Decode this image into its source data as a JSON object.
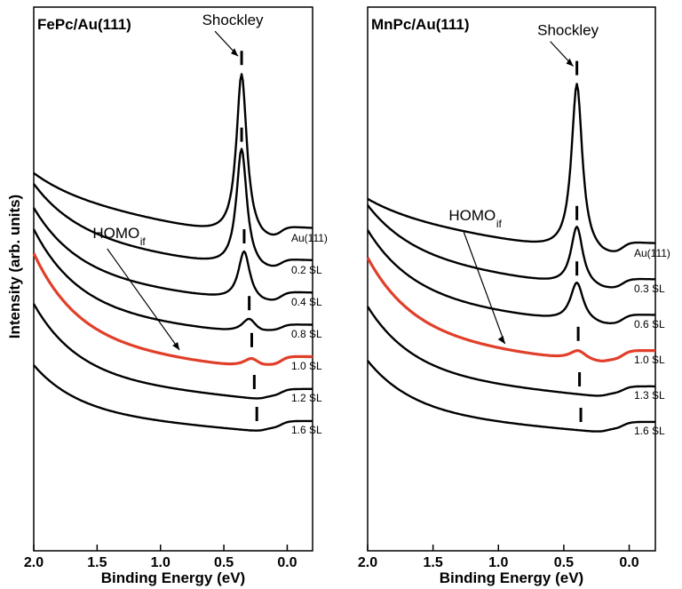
{
  "chart_data": {
    "type": "line",
    "ylabel": "Intensity (arb. units)",
    "xlabel": "Binding Energy (eV)",
    "xlim": [
      2.0,
      -0.2
    ],
    "x_ticks": [
      "2.0",
      "1.5",
      "1.0",
      "0.5",
      "0.0"
    ],
    "x_tick_values": [
      2.0,
      1.5,
      1.0,
      0.5,
      0.0
    ],
    "colors": {
      "trace": "#000000",
      "highlight": "#e0402a",
      "marker": "#000000"
    },
    "panels": [
      {
        "title": "FePc/Au(111)",
        "annotations": [
          {
            "text": "Shockley"
          },
          {
            "text": "HOMO",
            "sub": "if"
          }
        ],
        "series": [
          {
            "label": "Au(111)",
            "start": 0.09,
            "tail": 0.17,
            "end": 0.05,
            "peak_x": 0.36,
            "peak_height": 0.33,
            "peak_width": 0.05,
            "shoulder": 0.0,
            "highlight": false
          },
          {
            "label": "0.2 SL",
            "start": 0.2,
            "tail": 0.13,
            "end": 0.04,
            "peak_x": 0.36,
            "peak_height": 0.24,
            "peak_width": 0.05,
            "shoulder": 0.0,
            "highlight": false
          },
          {
            "label": "0.4 SL",
            "start": 0.26,
            "tail": 0.1,
            "end": 0.04,
            "peak_x": 0.34,
            "peak_height": 0.1,
            "peak_width": 0.055,
            "shoulder": 0.0,
            "highlight": false
          },
          {
            "label": "0.8 SL",
            "start": 0.31,
            "tail": 0.09,
            "end": 0.04,
            "peak_x": 0.3,
            "peak_height": 0.03,
            "peak_width": 0.07,
            "shoulder": 0.01,
            "highlight": false
          },
          {
            "label": "1.0 SL",
            "start": 0.34,
            "tail": 0.1,
            "end": 0.05,
            "peak_x": 0.28,
            "peak_height": 0.02,
            "peak_width": 0.08,
            "shoulder": 0.01,
            "highlight": true
          },
          {
            "label": "1.2 SL",
            "start": 0.28,
            "tail": 0.08,
            "end": 0.04,
            "peak_x": 0.26,
            "peak_height": 0.0,
            "peak_width": 0.08,
            "shoulder": 0.01,
            "highlight": false
          },
          {
            "label": "1.6 SL",
            "start": 0.18,
            "tail": 0.07,
            "end": 0.04,
            "peak_x": 0.24,
            "peak_height": 0.0,
            "peak_width": 0.08,
            "shoulder": 0.01,
            "highlight": false
          }
        ]
      },
      {
        "title": "MnPc/Au(111)",
        "annotations": [
          {
            "text": "Shockley"
          },
          {
            "text": "HOMO",
            "sub": "if"
          }
        ],
        "series": [
          {
            "label": "Au(111)",
            "start": 0.07,
            "tail": 0.15,
            "end": 0.05,
            "peak_x": 0.4,
            "peak_height": 0.34,
            "peak_width": 0.05,
            "shoulder": 0.0,
            "highlight": false
          },
          {
            "label": "0.3 SL",
            "start": 0.2,
            "tail": 0.12,
            "end": 0.04,
            "peak_x": 0.4,
            "peak_height": 0.12,
            "peak_width": 0.055,
            "shoulder": 0.0,
            "highlight": false
          },
          {
            "label": "0.6 SL",
            "start": 0.26,
            "tail": 0.1,
            "end": 0.04,
            "peak_x": 0.4,
            "peak_height": 0.08,
            "peak_width": 0.06,
            "shoulder": 0.0,
            "highlight": false
          },
          {
            "label": "1.0 SL",
            "start": 0.3,
            "tail": 0.1,
            "end": 0.05,
            "peak_x": 0.39,
            "peak_height": 0.02,
            "peak_width": 0.08,
            "shoulder": 0.01,
            "highlight": true
          },
          {
            "label": "1.3 SL",
            "start": 0.26,
            "tail": 0.08,
            "end": 0.04,
            "peak_x": 0.38,
            "peak_height": 0.0,
            "peak_width": 0.08,
            "shoulder": 0.01,
            "highlight": false
          },
          {
            "label": "1.6 SL",
            "start": 0.2,
            "tail": 0.07,
            "end": 0.04,
            "peak_x": 0.37,
            "peak_height": 0.0,
            "peak_width": 0.08,
            "shoulder": 0.01,
            "highlight": false
          }
        ]
      }
    ]
  }
}
